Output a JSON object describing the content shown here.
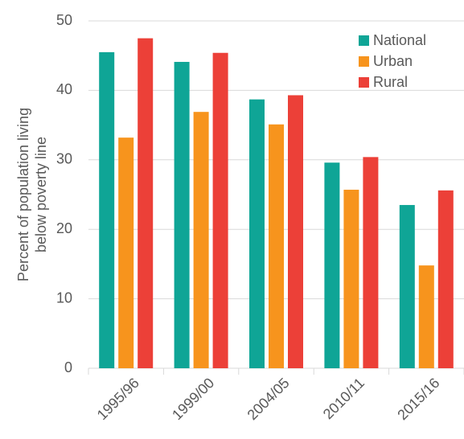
{
  "chart_data": {
    "type": "bar",
    "ylabel": [
      "Percent of population living",
      "below poverty line"
    ],
    "categories": [
      "1995/96",
      "1999/00",
      "2004/05",
      "2010/11",
      "2015/16"
    ],
    "series": [
      {
        "name": "National",
        "color": "#0fa596",
        "values": [
          45.5,
          44.1,
          38.7,
          29.6,
          23.5
        ]
      },
      {
        "name": "Urban",
        "color": "#f7941d",
        "values": [
          33.2,
          36.9,
          35.1,
          25.7,
          14.8
        ]
      },
      {
        "name": "Rural",
        "color": "#ec4038",
        "values": [
          47.5,
          45.4,
          39.3,
          30.4,
          25.6
        ]
      }
    ],
    "ylim": [
      0,
      50
    ],
    "yticks": [
      0,
      10,
      20,
      30,
      40,
      50
    ],
    "grid": true,
    "legend": "top-right"
  }
}
